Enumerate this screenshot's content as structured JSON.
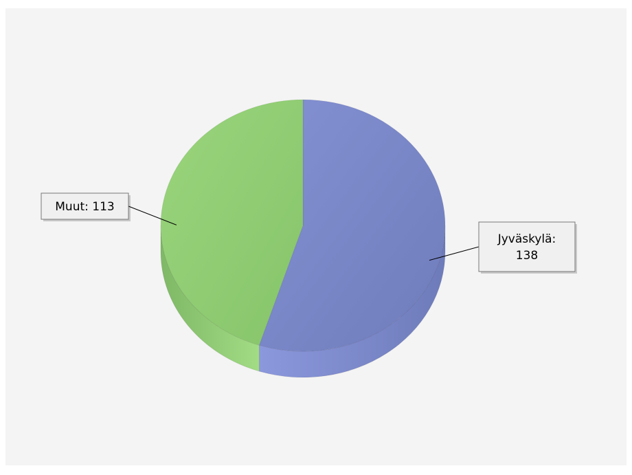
{
  "chart_data": {
    "type": "pie",
    "title": "",
    "style": "3d",
    "categories": [
      "Jyväskylä",
      "Muut"
    ],
    "values": [
      138,
      113
    ],
    "labels": [
      {
        "lines": [
          "Jyväskylä:",
          "138"
        ]
      },
      {
        "lines": [
          "Muut: 113"
        ]
      }
    ],
    "colors": {
      "Jyväskylä": "#7b88c7",
      "Muut": "#8dc76f",
      "panel_background": "#f4f4f4",
      "callout_background": "#f0f0f0",
      "callout_border": "#777777"
    },
    "legend": "none",
    "start_direction": "top",
    "direction": "clockwise"
  }
}
